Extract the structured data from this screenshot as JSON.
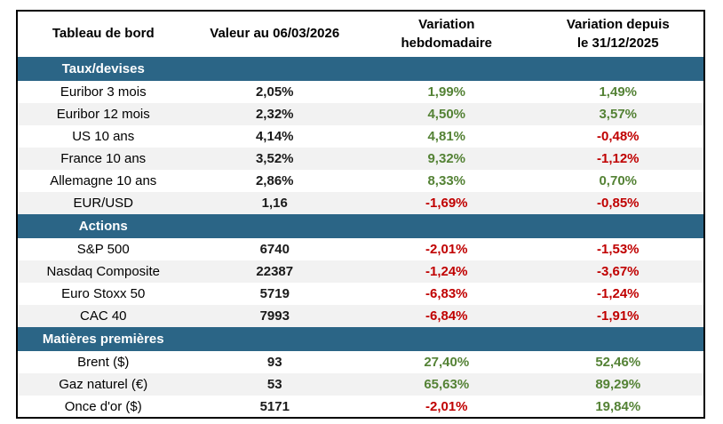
{
  "chart_data": {
    "type": "table",
    "title": "Tableau de bord",
    "header": {
      "col1": "Tableau de bord",
      "col2": "Valeur au 06/03/2026",
      "col3_line1": "Variation",
      "col3_line2": "hebdomadaire",
      "col4_line1": "Variation depuis",
      "col4_line2": "le 31/12/2025"
    },
    "sections": [
      {
        "name": "Taux/devises",
        "rows": [
          {
            "label": "Euribor 3 mois",
            "value": "2,05%",
            "weekly": "1,99%",
            "ytd": "1,49%"
          },
          {
            "label": "Euribor 12 mois",
            "value": "2,32%",
            "weekly": "4,50%",
            "ytd": "3,57%"
          },
          {
            "label": "US 10 ans",
            "value": "4,14%",
            "weekly": "4,81%",
            "ytd": "-0,48%"
          },
          {
            "label": "France 10 ans",
            "value": "3,52%",
            "weekly": "9,32%",
            "ytd": "-1,12%"
          },
          {
            "label": "Allemagne 10 ans",
            "value": "2,86%",
            "weekly": "8,33%",
            "ytd": "0,70%"
          },
          {
            "label": "EUR/USD",
            "value": "1,16",
            "weekly": "-1,69%",
            "ytd": "-0,85%"
          }
        ]
      },
      {
        "name": "Actions",
        "rows": [
          {
            "label": "S&P 500",
            "value": "6740",
            "weekly": "-2,01%",
            "ytd": "-1,53%"
          },
          {
            "label": "Nasdaq Composite",
            "value": "22387",
            "weekly": "-1,24%",
            "ytd": "-3,67%"
          },
          {
            "label": "Euro Stoxx 50",
            "value": "5719",
            "weekly": "-6,83%",
            "ytd": "-1,24%"
          },
          {
            "label": "CAC 40",
            "value": "7993",
            "weekly": "-6,84%",
            "ytd": "-1,91%"
          }
        ]
      },
      {
        "name": "Matières premières",
        "rows": [
          {
            "label": "Brent ($)",
            "value": "93",
            "weekly": "27,40%",
            "ytd": "52,46%"
          },
          {
            "label": "Gaz naturel (€)",
            "value": "53",
            "weekly": "65,63%",
            "ytd": "89,29%"
          },
          {
            "label": "Once d'or ($)",
            "value": "5171",
            "weekly": "-2,01%",
            "ytd": "19,84%"
          }
        ]
      }
    ],
    "colors": {
      "positive": "#548235",
      "negative": "#c00000",
      "section_band": "#2b6586",
      "row_stripe": "#f2f2f2"
    }
  }
}
